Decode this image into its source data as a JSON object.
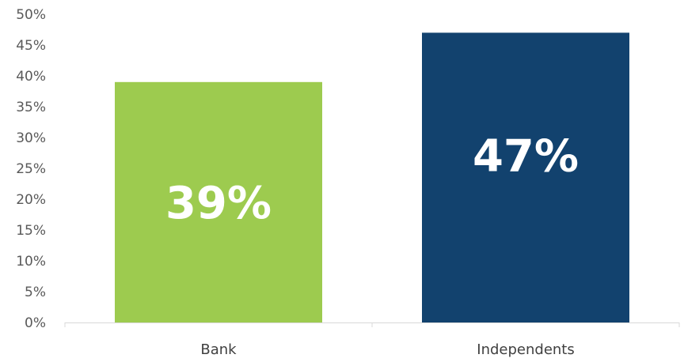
{
  "chart_data": {
    "type": "bar",
    "categories": [
      "Bank",
      "Independents"
    ],
    "values": [
      39,
      47
    ],
    "data_labels": [
      "39%",
      "47%"
    ],
    "ylim": [
      0,
      50
    ],
    "yticks": [
      0,
      5,
      10,
      15,
      20,
      25,
      30,
      35,
      40,
      45,
      50
    ],
    "ytick_labels": [
      "0%",
      "5%",
      "10%",
      "15%",
      "20%",
      "25%",
      "30%",
      "35%",
      "40%",
      "45%",
      "50%"
    ],
    "grid": false,
    "legend": "none",
    "colors": [
      "#9DCB4F",
      "#12426E"
    ]
  }
}
